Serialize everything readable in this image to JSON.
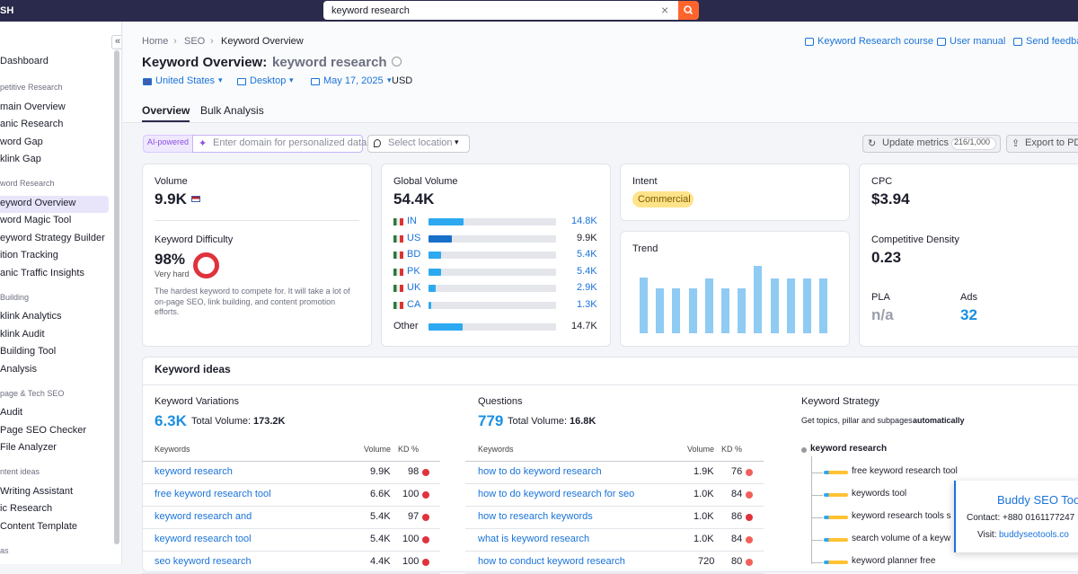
{
  "topbar": {
    "logo": "SH",
    "search": "keyword research"
  },
  "sidebar": {
    "top": "Dashboard",
    "groups": [
      {
        "heading": "petitive Research",
        "items": [
          "main Overview",
          "anic Research",
          "word Gap",
          "klink Gap"
        ]
      },
      {
        "heading": "word Research",
        "items": [
          "eyword Overview",
          "word Magic Tool",
          "eyword Strategy Builder",
          "ition Tracking",
          "anic Traffic Insights"
        ]
      },
      {
        "heading": "Building",
        "items": [
          "klink Analytics",
          "klink Audit",
          "Building Tool",
          "Analysis"
        ]
      },
      {
        "heading": "page & Tech SEO",
        "items": [
          "Audit",
          "Page SEO Checker",
          "File Analyzer"
        ]
      },
      {
        "heading": "ntent ideas",
        "items": [
          "Writing Assistant",
          "ic Research",
          "Content Template"
        ]
      },
      {
        "heading": "as",
        "items": []
      }
    ]
  },
  "header": {
    "breadcrumb": [
      "Home",
      "SEO",
      "Keyword Overview"
    ],
    "links": [
      "Keyword Research course",
      "User manual",
      "Send feedba"
    ],
    "title": "Keyword Overview:",
    "query": "keyword research",
    "filters": [
      "United States",
      "Desktop",
      "May 17, 2025"
    ],
    "currency": "USD",
    "tabs": [
      "Overview",
      "Bulk Analysis"
    ]
  },
  "toolbar": {
    "badge": "AI-powered",
    "domain_placeholder": "Enter domain for personalized data",
    "location": "Select location",
    "update": "Update metrics",
    "quota": "216/1,000",
    "export": "Export to PD"
  },
  "volume_card": {
    "label": "Volume",
    "value": "9.9K",
    "kd_label": "Keyword Difficulty",
    "kd_value": "98%",
    "kd_level": "Very hard",
    "kd_text": [
      "The hardest keyword to compete for. It will take a lot of",
      "on-page SEO, link building, and content promotion",
      "efforts."
    ]
  },
  "global_card": {
    "label": "Global Volume",
    "total": {
      "value": 54400,
      "label": "54.4K"
    },
    "rows": [
      {
        "country": "IN",
        "volume": {
          "value": 14800,
          "label": "14.8K"
        }
      },
      {
        "country": "US",
        "volume": {
          "value": 9900,
          "label": "9.9K"
        }
      },
      {
        "country": "BD",
        "volume": {
          "value": 5400,
          "label": "5.4K"
        }
      },
      {
        "country": "PK",
        "volume": {
          "value": 5400,
          "label": "5.4K"
        }
      },
      {
        "country": "UK",
        "volume": {
          "value": 2900,
          "label": "2.9K"
        }
      },
      {
        "country": "CA",
        "volume": {
          "value": 1300,
          "label": "1.3K"
        }
      },
      {
        "country": "Other",
        "volume": {
          "value": 14700,
          "label": "14.7K"
        }
      }
    ]
  },
  "intent_card": {
    "label": "Intent",
    "value": "Commercial"
  },
  "trend_card": {
    "label": "Trend",
    "values": [
      0.83,
      0.67,
      0.67,
      0.67,
      0.81,
      0.67,
      0.67,
      1,
      0.81,
      0.81,
      0.81,
      0.81
    ]
  },
  "cpc_card": {
    "label": "CPC",
    "value": "$3.94",
    "density_label": "Competitive Density",
    "density": "0.23",
    "pla_label": "PLA",
    "pla": "n/a",
    "ads_label": "Ads",
    "ads": "32"
  },
  "ideas": {
    "title": "Keyword ideas",
    "columns": [
      "Keywords",
      "Volume",
      "KD %"
    ],
    "variations": {
      "label": "Keyword Variations",
      "count": "6.3K",
      "total_label": "Total Volume:",
      "total": "173.2K",
      "rows": [
        [
          "keyword research",
          "9.9K",
          98
        ],
        [
          "free keyword research tool",
          "6.6K",
          100
        ],
        [
          "keyword research and",
          "5.4K",
          97
        ],
        [
          "keyword research tool",
          "5.4K",
          100
        ],
        [
          "seo keyword research",
          "4.4K",
          100
        ]
      ]
    },
    "questions": {
      "label": "Questions",
      "count": "779",
      "total_label": "Total Volume:",
      "total": "16.8K",
      "rows": [
        [
          "how to do keyword research",
          "1.9K",
          76
        ],
        [
          "how to do keyword research for seo",
          "1.0K",
          84
        ],
        [
          "how to research keywords",
          "1.0K",
          86
        ],
        [
          "what is keyword research",
          "1.0K",
          84
        ],
        [
          "how to conduct keyword research",
          "720",
          80
        ]
      ]
    },
    "strategy": {
      "label": "Keyword Strategy",
      "text": "Get topics, pillar and subpages ",
      "text_bold": "automatically",
      "root": "keyword research",
      "children": [
        "free keyword research tool",
        "keywords tool",
        "keyword research tools s",
        "search volume of a keyw",
        "keyword planner free"
      ]
    }
  },
  "popup": {
    "title": "Buddy SEO Tool",
    "contact": "Contact: +880 0161177247",
    "visit": "Visit: ",
    "site": "buddyseotools.co"
  }
}
